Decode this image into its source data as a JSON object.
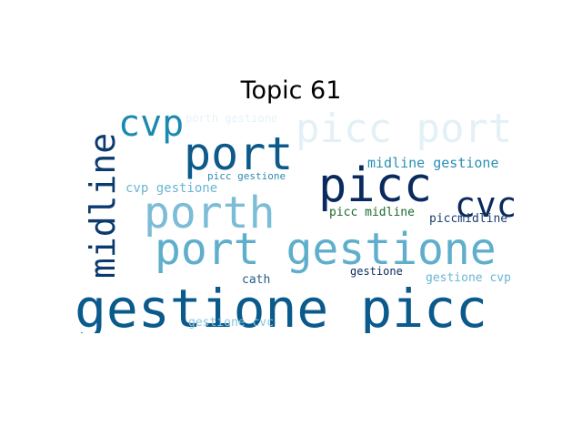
{
  "title": "Topic 61",
  "words": [
    {
      "text": "gestione picc",
      "color": "#0a5a8c"
    },
    {
      "text": "port gestione",
      "color": "#5eaecc"
    },
    {
      "text": "porth",
      "color": "#7bbcd6"
    },
    {
      "text": "picc port",
      "color": "#e3f1f7"
    },
    {
      "text": "picc",
      "color": "#0a2a5e"
    },
    {
      "text": "port",
      "color": "#0c5a8a"
    },
    {
      "text": "midline",
      "color": "#0b3a6e"
    },
    {
      "text": "cvp",
      "color": "#1b8ab0"
    },
    {
      "text": "cvc",
      "color": "#0a2a5e"
    },
    {
      "text": "midline gestione",
      "color": "#2a8fb5"
    },
    {
      "text": "porth gestione",
      "color": "#e6f2f8"
    },
    {
      "text": "cvp gestione",
      "color": "#6ab6d2"
    },
    {
      "text": "picc gestione",
      "color": "#2f89b0"
    },
    {
      "text": "picc midline",
      "color": "#1c6b2e"
    },
    {
      "text": "piccmidline",
      "color": "#1a3f70"
    },
    {
      "text": "cath",
      "color": "#245d8a"
    },
    {
      "text": "gestione",
      "color": "#0a2a5e"
    },
    {
      "text": "gestione cvp",
      "color": "#6ab6d2"
    },
    {
      "text": "gestione cvc",
      "color": "#8cc6dd"
    }
  ]
}
